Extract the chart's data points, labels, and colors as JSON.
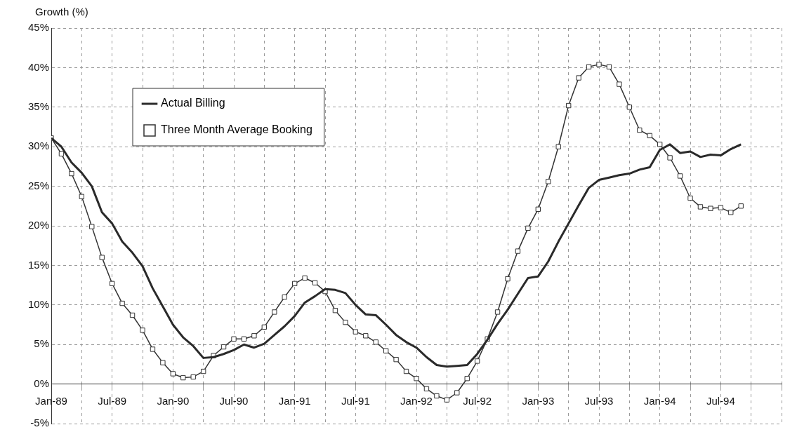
{
  "chart_data": {
    "type": "line",
    "ylabel": "Growth (%)",
    "x": [
      "1989-01",
      "1989-02",
      "1989-03",
      "1989-04",
      "1989-05",
      "1989-06",
      "1989-07",
      "1989-08",
      "1989-09",
      "1989-10",
      "1989-11",
      "1989-12",
      "1990-01",
      "1990-02",
      "1990-03",
      "1990-04",
      "1990-05",
      "1990-06",
      "1990-07",
      "1990-08",
      "1990-09",
      "1990-10",
      "1990-11",
      "1990-12",
      "1991-01",
      "1991-02",
      "1991-03",
      "1991-04",
      "1991-05",
      "1991-06",
      "1991-07",
      "1991-08",
      "1991-09",
      "1991-10",
      "1991-11",
      "1991-12",
      "1992-01",
      "1992-02",
      "1992-03",
      "1992-04",
      "1992-05",
      "1992-06",
      "1992-07",
      "1992-08",
      "1992-09",
      "1992-10",
      "1992-11",
      "1992-12",
      "1993-01",
      "1993-02",
      "1993-03",
      "1993-04",
      "1993-05",
      "1993-06",
      "1993-07",
      "1993-08",
      "1993-09",
      "1993-10",
      "1993-11",
      "1993-12",
      "1994-01",
      "1994-02",
      "1994-03",
      "1994-04",
      "1994-05",
      "1994-06",
      "1994-07",
      "1994-08",
      "1994-09"
    ],
    "series": [
      {
        "name": "Actual Billing",
        "color": "#2a2a2a",
        "marker": "none",
        "values": [
          31.1,
          30.0,
          28.0,
          26.7,
          25.0,
          21.7,
          20.3,
          18.0,
          16.6,
          14.9,
          12.1,
          9.8,
          7.5,
          5.9,
          4.8,
          3.3,
          3.4,
          3.8,
          4.3,
          5.0,
          4.6,
          5.1,
          6.2,
          7.3,
          8.6,
          10.3,
          11.1,
          12.0,
          11.9,
          11.5,
          10.0,
          8.8,
          8.7,
          7.5,
          6.2,
          5.3,
          4.6,
          3.4,
          2.4,
          2.2,
          2.3,
          2.4,
          3.8,
          5.6,
          7.6,
          9.4,
          11.4,
          13.4,
          13.6,
          15.5,
          18.0,
          20.3,
          22.6,
          24.8,
          25.8,
          26.1,
          26.4,
          26.6,
          27.1,
          27.4,
          29.6,
          30.3,
          29.2,
          29.4,
          28.7,
          29.0,
          28.9,
          29.7,
          30.3
        ]
      },
      {
        "name": "Three Month Average Booking",
        "color": "#333333",
        "marker": "square",
        "values": [
          31.1,
          29.1,
          26.6,
          23.7,
          19.9,
          16.0,
          12.7,
          10.2,
          8.7,
          6.8,
          4.4,
          2.7,
          1.3,
          0.8,
          0.9,
          1.6,
          3.6,
          4.7,
          5.7,
          5.7,
          6.1,
          7.2,
          9.1,
          11.0,
          12.7,
          13.4,
          12.8,
          11.7,
          9.3,
          7.8,
          6.6,
          6.1,
          5.3,
          4.2,
          3.1,
          1.6,
          0.7,
          -0.6,
          -1.5,
          -2.0,
          -1.1,
          0.7,
          2.9,
          5.7,
          9.1,
          13.3,
          16.8,
          19.7,
          22.1,
          25.6,
          30.0,
          35.2,
          38.7,
          40.1,
          40.4,
          40.1,
          37.9,
          35.0,
          32.1,
          31.4,
          30.3,
          28.6,
          26.3,
          23.5,
          22.4,
          22.2,
          22.3,
          21.7,
          22.5
        ]
      }
    ],
    "xlim": [
      "1989-01",
      "1995-01"
    ],
    "xticks": [
      {
        "value": "1989-01",
        "label": "Jan-89"
      },
      {
        "value": "1989-04",
        "label": null
      },
      {
        "value": "1989-07",
        "label": "Jul-89"
      },
      {
        "value": "1989-10",
        "label": null
      },
      {
        "value": "1990-01",
        "label": "Jan-90"
      },
      {
        "value": "1990-04",
        "label": null
      },
      {
        "value": "1990-07",
        "label": "Jul-90"
      },
      {
        "value": "1990-10",
        "label": null
      },
      {
        "value": "1991-01",
        "label": "Jan-91"
      },
      {
        "value": "1991-04",
        "label": null
      },
      {
        "value": "1991-07",
        "label": "Jul-91"
      },
      {
        "value": "1991-10",
        "label": null
      },
      {
        "value": "1992-01",
        "label": "Jan-92"
      },
      {
        "value": "1992-04",
        "label": null
      },
      {
        "value": "1992-07",
        "label": "Jul-92"
      },
      {
        "value": "1992-10",
        "label": null
      },
      {
        "value": "1993-01",
        "label": "Jan-93"
      },
      {
        "value": "1993-04",
        "label": null
      },
      {
        "value": "1993-07",
        "label": "Jul-93"
      },
      {
        "value": "1993-10",
        "label": null
      },
      {
        "value": "1994-01",
        "label": "Jan-94"
      },
      {
        "value": "1994-04",
        "label": null
      },
      {
        "value": "1994-07",
        "label": "Jul-94"
      },
      {
        "value": "1994-10",
        "label": null
      },
      {
        "value": "1995-01",
        "label": null
      }
    ],
    "ylim": [
      -5,
      45
    ],
    "yticks": [
      {
        "value": -5,
        "label": "-5%"
      },
      {
        "value": 0,
        "label": "0%"
      },
      {
        "value": 5,
        "label": "5%"
      },
      {
        "value": 10,
        "label": "10%"
      },
      {
        "value": 15,
        "label": "15%"
      },
      {
        "value": 20,
        "label": "20%"
      },
      {
        "value": 25,
        "label": "25%"
      },
      {
        "value": 30,
        "label": "30%"
      },
      {
        "value": 35,
        "label": "35%"
      },
      {
        "value": 40,
        "label": "40%"
      },
      {
        "value": 45,
        "label": "45%"
      }
    ],
    "grid": true,
    "legend": "top left",
    "line_style": "solid"
  }
}
